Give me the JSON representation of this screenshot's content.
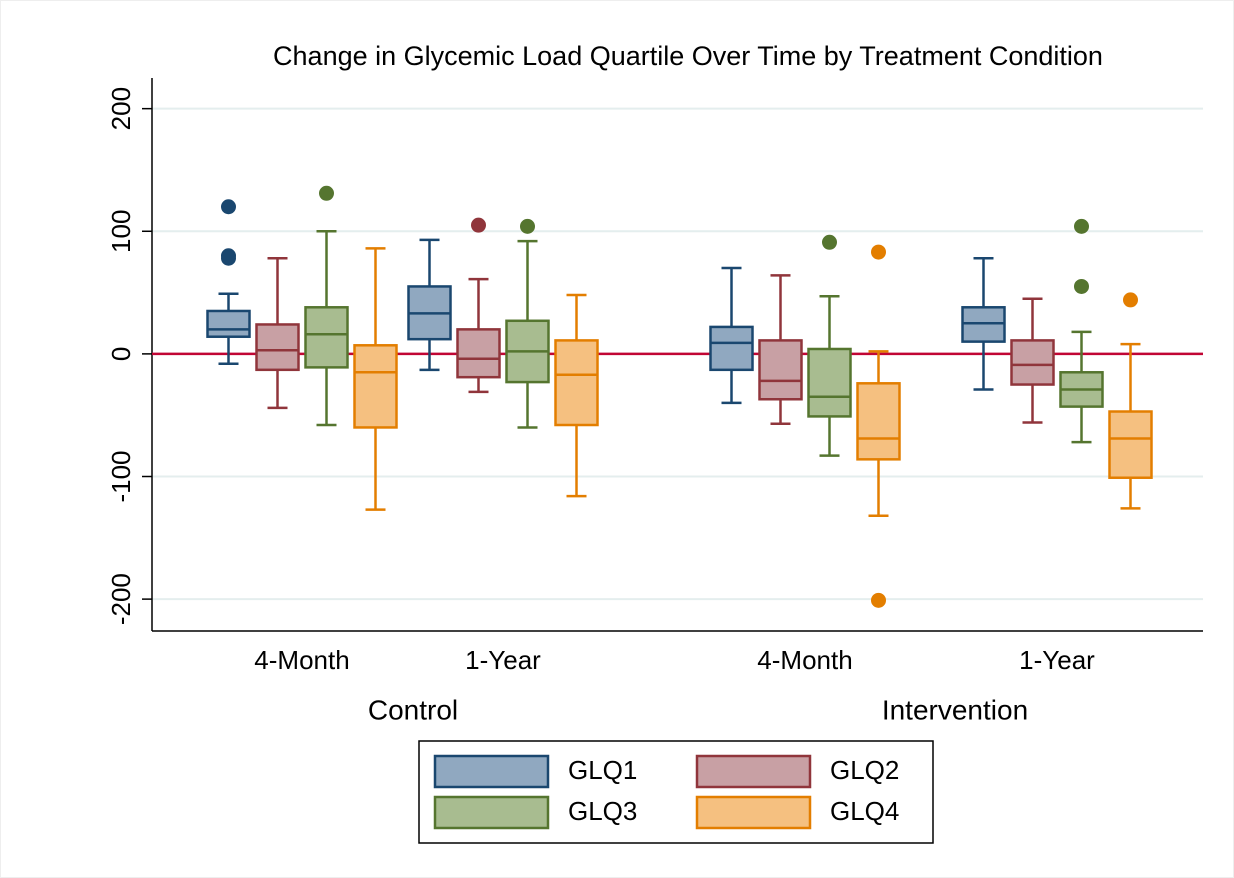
{
  "chart_data": {
    "type": "box",
    "title": "Change in Glycemic Load Quartile Over Time by Treatment Condition",
    "groups": [
      {
        "name": "Control",
        "categories": [
          "4-Month",
          "1-Year"
        ]
      },
      {
        "name": "Intervention",
        "categories": [
          "4-Month",
          "1-Year"
        ]
      }
    ],
    "ylim": [
      -226,
      225
    ],
    "yticks": [
      -200,
      -100,
      0,
      100,
      200
    ],
    "grid": true,
    "reference_line": 0,
    "reference_color": "#c10534",
    "legend_position": "bottom",
    "series": [
      {
        "name": "GLQ1",
        "color": "#1a476f",
        "fill": "#90a8c0",
        "boxes": [
          {
            "low": -8,
            "q1": 14,
            "median": 20,
            "q3": 35,
            "high": 49,
            "outliers": [
              120,
              80,
              78
            ]
          },
          {
            "low": -13,
            "q1": 12,
            "median": 33,
            "q3": 55,
            "high": 93,
            "outliers": []
          },
          {
            "low": -40,
            "q1": -13,
            "median": 9,
            "q3": 22,
            "high": 70,
            "outliers": []
          },
          {
            "low": -29,
            "q1": 10,
            "median": 25,
            "q3": 38,
            "high": 78,
            "outliers": []
          }
        ]
      },
      {
        "name": "GLQ2",
        "color": "#90353b",
        "fill": "#c8a0a4",
        "boxes": [
          {
            "low": -44,
            "q1": -13,
            "median": 3,
            "q3": 24,
            "high": 78,
            "outliers": []
          },
          {
            "low": -31,
            "q1": -19,
            "median": -4,
            "q3": 20,
            "high": 61,
            "outliers": [
              105
            ]
          },
          {
            "low": -57,
            "q1": -37,
            "median": -22,
            "q3": 11,
            "high": 64,
            "outliers": []
          },
          {
            "low": -56,
            "q1": -25,
            "median": -9,
            "q3": 11,
            "high": 45,
            "outliers": []
          }
        ]
      },
      {
        "name": "GLQ3",
        "color": "#55752f",
        "fill": "#a8bc90",
        "boxes": [
          {
            "low": -58,
            "q1": -11,
            "median": 16,
            "q3": 38,
            "high": 100,
            "outliers": [
              131
            ]
          },
          {
            "low": -60,
            "q1": -23,
            "median": 2,
            "q3": 27,
            "high": 92,
            "outliers": [
              104
            ]
          },
          {
            "low": -83,
            "q1": -51,
            "median": -35,
            "q3": 4,
            "high": 47,
            "outliers": [
              91
            ]
          },
          {
            "low": -72,
            "q1": -43,
            "median": -29,
            "q3": -15,
            "high": 18,
            "outliers": [
              104,
              55
            ]
          }
        ]
      },
      {
        "name": "GLQ4",
        "color": "#e37e00",
        "fill": "#f5c080",
        "boxes": [
          {
            "low": -127,
            "q1": -60,
            "median": -15,
            "q3": 7,
            "high": 86,
            "outliers": []
          },
          {
            "low": -116,
            "q1": -58,
            "median": -17,
            "q3": 11,
            "high": 48,
            "outliers": []
          },
          {
            "low": -132,
            "q1": -86,
            "median": -69,
            "q3": -24,
            "high": 2,
            "outliers": [
              83,
              -201
            ]
          },
          {
            "low": -126,
            "q1": -101,
            "median": -69,
            "q3": -47,
            "high": 8,
            "outliers": [
              44
            ]
          }
        ]
      }
    ]
  }
}
